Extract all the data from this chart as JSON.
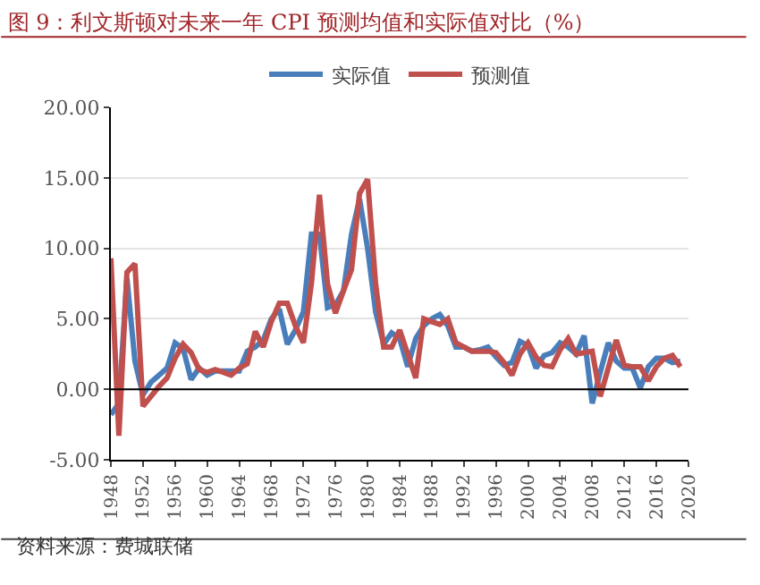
{
  "chart_data": {
    "type": "line",
    "title": "图 9：利文斯顿对未来一年 CPI 预测均值和实际值对比（%）",
    "x": [
      1948,
      1949,
      1950,
      1951,
      1952,
      1953,
      1954,
      1955,
      1956,
      1957,
      1958,
      1959,
      1960,
      1961,
      1962,
      1963,
      1964,
      1965,
      1966,
      1967,
      1968,
      1969,
      1970,
      1971,
      1972,
      1973,
      1974,
      1975,
      1976,
      1977,
      1978,
      1979,
      1980,
      1981,
      1982,
      1983,
      1984,
      1985,
      1986,
      1987,
      1988,
      1989,
      1990,
      1991,
      1992,
      1993,
      1994,
      1995,
      1996,
      1997,
      1998,
      1999,
      2000,
      2001,
      2002,
      2003,
      2004,
      2005,
      2006,
      2007,
      2008,
      2009,
      2010,
      2011,
      2012,
      2013,
      2014,
      2015,
      2016,
      2017,
      2018,
      2019
    ],
    "series": [
      {
        "name": "实际值",
        "color": "#4a7ebb",
        "values": [
          -1.8,
          -1.0,
          7.9,
          2.0,
          -0.4,
          0.5,
          1.0,
          1.5,
          3.3,
          2.9,
          0.7,
          1.5,
          1.0,
          1.3,
          1.3,
          1.3,
          1.3,
          2.7,
          3.0,
          3.5,
          5.0,
          5.7,
          3.2,
          4.2,
          5.5,
          11.0,
          11.0,
          5.8,
          6.0,
          7.0,
          11.0,
          13.5,
          10.0,
          5.5,
          3.2,
          4.0,
          3.6,
          1.6,
          3.6,
          4.5,
          5.0,
          5.3,
          4.5,
          3.0,
          3.0,
          2.7,
          2.8,
          3.0,
          2.3,
          1.7,
          1.9,
          3.4,
          3.1,
          1.5,
          2.4,
          2.6,
          3.3,
          3.0,
          2.5,
          3.8,
          -1.0,
          1.2,
          3.3,
          2.0,
          1.5,
          1.5,
          0.1,
          1.6,
          2.2,
          2.2,
          1.9,
          2.0
        ]
      },
      {
        "name": "预测值",
        "color": "#c0504d",
        "values": [
          9.3,
          -3.3,
          8.3,
          8.9,
          -1.2,
          -0.5,
          0.2,
          0.8,
          2.2,
          3.2,
          2.6,
          1.4,
          1.2,
          1.4,
          1.2,
          1.0,
          1.5,
          1.8,
          4.1,
          3.0,
          4.8,
          6.1,
          6.1,
          4.5,
          3.3,
          7.5,
          13.8,
          7.5,
          5.4,
          7.0,
          8.5,
          13.9,
          14.9,
          7.5,
          3.0,
          3.0,
          4.2,
          2.5,
          0.8,
          5.0,
          4.8,
          4.6,
          5.0,
          3.3,
          3.0,
          2.7,
          2.7,
          2.7,
          2.6,
          1.9,
          1.0,
          2.5,
          3.3,
          2.3,
          1.7,
          1.6,
          2.8,
          3.6,
          2.5,
          2.6,
          2.7,
          -0.5,
          1.5,
          3.5,
          1.7,
          1.6,
          1.6,
          0.6,
          1.6,
          2.2,
          2.4,
          1.6
        ]
      }
    ],
    "xlim": [
      1948,
      2020
    ],
    "xticks": [
      1948,
      1952,
      1956,
      1960,
      1964,
      1968,
      1972,
      1976,
      1980,
      1984,
      1988,
      1992,
      1996,
      2000,
      2004,
      2008,
      2012,
      2016,
      2020
    ],
    "ylim": [
      -5,
      20
    ],
    "yticks": [
      {
        "value": -5,
        "label": "-5.00"
      },
      {
        "value": 0,
        "label": "0.00"
      },
      {
        "value": 5,
        "label": "5.00"
      },
      {
        "value": 10,
        "label": "10.00"
      },
      {
        "value": 15,
        "label": "15.00"
      },
      {
        "value": 20,
        "label": "20.00"
      }
    ],
    "grid": "y",
    "legend": "top",
    "marker": "none",
    "line_style": "solid",
    "annotations": [
      "资料来源：费城联储"
    ]
  }
}
